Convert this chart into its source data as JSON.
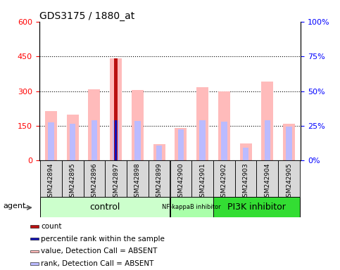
{
  "title": "GDS3175 / 1880_at",
  "samples": [
    "GSM242894",
    "GSM242895",
    "GSM242896",
    "GSM242897",
    "GSM242898",
    "GSM242899",
    "GSM242900",
    "GSM242901",
    "GSM242902",
    "GSM242903",
    "GSM242904",
    "GSM242905"
  ],
  "groups": [
    {
      "name": "control",
      "start": 0,
      "end": 5,
      "color": "#ccffcc",
      "fontsize": 9
    },
    {
      "name": "NF-kappaB inhibitor",
      "start": 6,
      "end": 7,
      "color": "#aaffaa",
      "fontsize": 6
    },
    {
      "name": "PI3K inhibitor",
      "start": 8,
      "end": 11,
      "color": "#33dd33",
      "fontsize": 9
    }
  ],
  "absent_value_bars": [
    215,
    200,
    308,
    440,
    305,
    70,
    140,
    318,
    298,
    75,
    340,
    160
  ],
  "absent_rank_bars": [
    165,
    158,
    175,
    175,
    170,
    65,
    135,
    175,
    168,
    55,
    175,
    148
  ],
  "present_value_bar_idx": 3,
  "present_value_bar_height": 440,
  "present_rank_bar_idx": 3,
  "present_rank_bar_height": 175,
  "ylim_left": [
    0,
    600
  ],
  "ylim_right": [
    0,
    100
  ],
  "yticks_left": [
    0,
    150,
    300,
    450,
    600
  ],
  "yticks_right": [
    0,
    25,
    50,
    75,
    100
  ],
  "ytick_labels_left": [
    "0",
    "150",
    "300",
    "450",
    "600"
  ],
  "ytick_labels_right": [
    "0%",
    "25%",
    "50%",
    "75%",
    "100%"
  ],
  "absent_value_color": "#ffbbbb",
  "absent_rank_color": "#bbbbff",
  "present_value_color": "#bb1111",
  "present_rank_color": "#1111bb",
  "absent_value_bar_width": 0.55,
  "absent_rank_bar_width": 0.28,
  "present_value_bar_width": 0.18,
  "present_rank_bar_width": 0.09,
  "grid_yticks": [
    150,
    300,
    450
  ],
  "agent_label": "agent",
  "legend_items": [
    {
      "color": "#bb1111",
      "label": "count"
    },
    {
      "color": "#1111bb",
      "label": "percentile rank within the sample"
    },
    {
      "color": "#ffbbbb",
      "label": "value, Detection Call = ABSENT"
    },
    {
      "color": "#bbbbff",
      "label": "rank, Detection Call = ABSENT"
    }
  ]
}
